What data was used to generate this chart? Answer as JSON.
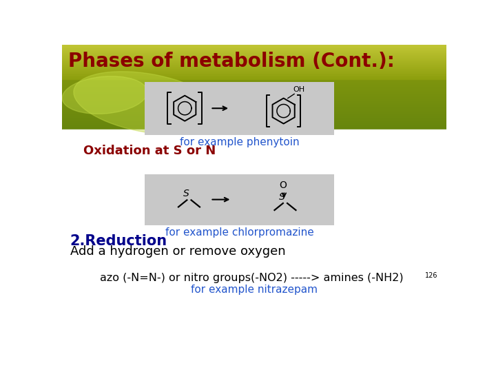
{
  "title": "Phases of metabolism (Cont.):",
  "title_color": "#8B0000",
  "title_fontsize": 20,
  "label_phenytoin": "for example phenytoin",
  "label_chlorpromazine": "for example chlorpromazine",
  "label_blue_color": "#2255cc",
  "oxidation_text": "Oxidation at S or N",
  "oxidation_color": "#8B0000",
  "reduction_title": "2.Reduction",
  "reduction_title_color": "#00008B",
  "reduction_body": "Add a hydrogen or remove oxygen",
  "reduction_body_color": "#000000",
  "azo_text": "azo (-N=N-) or nitro groups",
  "azo_text2": "(-NO2) -----> amines (-NH2)",
  "azo_superscript": "126",
  "azo_color": "#000000",
  "nitrazepam_text": "for example nitrazepam",
  "nitrazepam_color": "#2255cc",
  "image_box_color": "#c8c8c8",
  "bg_green_dark": "#6b8c1a",
  "bg_green_mid": "#8aaa20",
  "bg_green_light": "#a8c830"
}
